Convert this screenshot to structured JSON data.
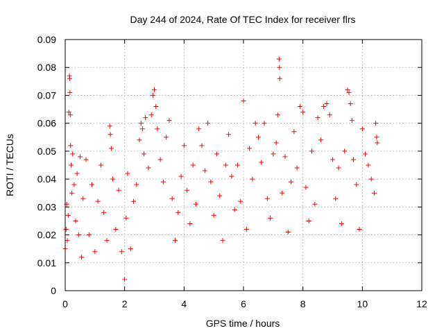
{
  "chart_data": {
    "type": "scatter",
    "title": "Day 244 of 2024, Rate Of TEC Index for receiver flrs",
    "xlabel": "GPS time / hours",
    "ylabel": "ROTI / TECUs",
    "xlim": [
      0,
      12
    ],
    "ylim": [
      0,
      0.09
    ],
    "x_ticks": [
      0,
      2,
      4,
      6,
      8,
      10,
      12
    ],
    "x_tick_labels": [
      "0",
      "2",
      "4",
      "6",
      "8",
      "10",
      "12"
    ],
    "y_ticks": [
      0,
      0.01,
      0.02,
      0.03,
      0.04,
      0.05,
      0.06,
      0.07,
      0.08,
      0.09
    ],
    "y_tick_labels": [
      "0",
      "0.01",
      "0.02",
      "0.03",
      "0.04",
      "0.05",
      "0.06",
      "0.07",
      "0.08",
      "0.09"
    ],
    "grid": true,
    "marker": "+",
    "color": "#ff0000",
    "series": [
      {
        "name": "ROTI",
        "points": [
          [
            0.0,
            0.015
          ],
          [
            0.03,
            0.022
          ],
          [
            0.05,
            0.031
          ],
          [
            0.07,
            0.018
          ],
          [
            0.1,
            0.027
          ],
          [
            0.12,
            0.064
          ],
          [
            0.14,
            0.077
          ],
          [
            0.15,
            0.076
          ],
          [
            0.16,
            0.071
          ],
          [
            0.17,
            0.063
          ],
          [
            0.18,
            0.052
          ],
          [
            0.2,
            0.045
          ],
          [
            0.22,
            0.035
          ],
          [
            0.25,
            0.049
          ],
          [
            0.3,
            0.038
          ],
          [
            0.35,
            0.025
          ],
          [
            0.4,
            0.042
          ],
          [
            0.45,
            0.02
          ],
          [
            0.5,
            0.048
          ],
          [
            0.55,
            0.012
          ],
          [
            0.6,
            0.033
          ],
          [
            0.7,
            0.047
          ],
          [
            0.8,
            0.02
          ],
          [
            0.9,
            0.038
          ],
          [
            1.0,
            0.014
          ],
          [
            1.1,
            0.032
          ],
          [
            1.2,
            0.045
          ],
          [
            1.3,
            0.028
          ],
          [
            1.4,
            0.018
          ],
          [
            1.5,
            0.059
          ],
          [
            1.52,
            0.056
          ],
          [
            1.55,
            0.051
          ],
          [
            1.6,
            0.04
          ],
          [
            1.7,
            0.022
          ],
          [
            1.8,
            0.036
          ],
          [
            1.9,
            0.014
          ],
          [
            2.0,
            0.004
          ],
          [
            2.05,
            0.026
          ],
          [
            2.1,
            0.042
          ],
          [
            2.2,
            0.015
          ],
          [
            2.3,
            0.032
          ],
          [
            2.4,
            0.038
          ],
          [
            2.5,
            0.054
          ],
          [
            2.55,
            0.06
          ],
          [
            2.6,
            0.058
          ],
          [
            2.65,
            0.049
          ],
          [
            2.7,
            0.062
          ],
          [
            2.8,
            0.044
          ],
          [
            2.9,
            0.063
          ],
          [
            2.95,
            0.07
          ],
          [
            3.0,
            0.072
          ],
          [
            3.05,
            0.066
          ],
          [
            3.1,
            0.058
          ],
          [
            3.2,
            0.047
          ],
          [
            3.3,
            0.039
          ],
          [
            3.4,
            0.055
          ],
          [
            3.5,
            0.061
          ],
          [
            3.6,
            0.033
          ],
          [
            3.7,
            0.018
          ],
          [
            3.8,
            0.028
          ],
          [
            3.9,
            0.041
          ],
          [
            4.0,
            0.052
          ],
          [
            4.1,
            0.036
          ],
          [
            4.2,
            0.024
          ],
          [
            4.3,
            0.045
          ],
          [
            4.4,
            0.031
          ],
          [
            4.5,
            0.058
          ],
          [
            4.6,
            0.052
          ],
          [
            4.7,
            0.043
          ],
          [
            4.8,
            0.06
          ],
          [
            4.9,
            0.039
          ],
          [
            5.0,
            0.027
          ],
          [
            5.1,
            0.049
          ],
          [
            5.2,
            0.034
          ],
          [
            5.3,
            0.018
          ],
          [
            5.4,
            0.045
          ],
          [
            5.5,
            0.056
          ],
          [
            5.6,
            0.041
          ],
          [
            5.7,
            0.029
          ],
          [
            5.8,
            0.045
          ],
          [
            5.9,
            0.032
          ],
          [
            6.0,
            0.068
          ],
          [
            6.1,
            0.022
          ],
          [
            6.2,
            0.051
          ],
          [
            6.3,
            0.04
          ],
          [
            6.4,
            0.06
          ],
          [
            6.5,
            0.055
          ],
          [
            6.6,
            0.046
          ],
          [
            6.7,
            0.06
          ],
          [
            6.8,
            0.033
          ],
          [
            6.9,
            0.026
          ],
          [
            7.0,
            0.049
          ],
          [
            7.1,
            0.053
          ],
          [
            7.15,
            0.063
          ],
          [
            7.2,
            0.083
          ],
          [
            7.21,
            0.08
          ],
          [
            7.22,
            0.076
          ],
          [
            7.3,
            0.035
          ],
          [
            7.4,
            0.048
          ],
          [
            7.5,
            0.021
          ],
          [
            7.6,
            0.039
          ],
          [
            7.7,
            0.057
          ],
          [
            7.8,
            0.044
          ],
          [
            7.9,
            0.066
          ],
          [
            8.0,
            0.064
          ],
          [
            8.1,
            0.037
          ],
          [
            8.2,
            0.025
          ],
          [
            8.3,
            0.05
          ],
          [
            8.4,
            0.031
          ],
          [
            8.5,
            0.062
          ],
          [
            8.6,
            0.054
          ],
          [
            8.7,
            0.066
          ],
          [
            8.8,
            0.067
          ],
          [
            8.9,
            0.063
          ],
          [
            9.0,
            0.047
          ],
          [
            9.1,
            0.033
          ],
          [
            9.2,
            0.044
          ],
          [
            9.3,
            0.024
          ],
          [
            9.4,
            0.05
          ],
          [
            9.5,
            0.072
          ],
          [
            9.55,
            0.071
          ],
          [
            9.6,
            0.067
          ],
          [
            9.65,
            0.061
          ],
          [
            9.7,
            0.047
          ],
          [
            9.8,
            0.038
          ],
          [
            9.9,
            0.022
          ],
          [
            10.0,
            0.058
          ],
          [
            10.1,
            0.049
          ],
          [
            10.2,
            0.045
          ],
          [
            10.3,
            0.04
          ],
          [
            10.4,
            0.035
          ],
          [
            10.45,
            0.06
          ],
          [
            10.48,
            0.055
          ],
          [
            10.5,
            0.053
          ]
        ]
      }
    ]
  }
}
